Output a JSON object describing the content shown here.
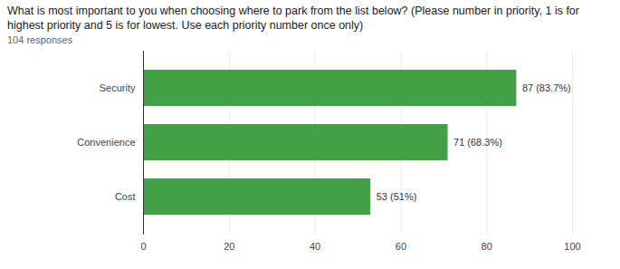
{
  "chart_data": {
    "type": "bar",
    "title": "What is most important to you when choosing where to park from the list below? (Please number in priority, 1 is for highest priority and 5 is for lowest. Use each priority number once only)",
    "subtitle": "104 responses",
    "orientation": "horizontal",
    "categories": [
      "Security",
      "Convenience",
      "Cost"
    ],
    "values": [
      87,
      71,
      53
    ],
    "value_labels": [
      "87 (83.7%)",
      "71 (68.3%)",
      "53 (51%)"
    ],
    "data_labels": true,
    "color": "#43a047",
    "xlim": [
      0,
      100
    ],
    "xticks": [
      0,
      20,
      40,
      60,
      80,
      100
    ],
    "grid": true
  }
}
